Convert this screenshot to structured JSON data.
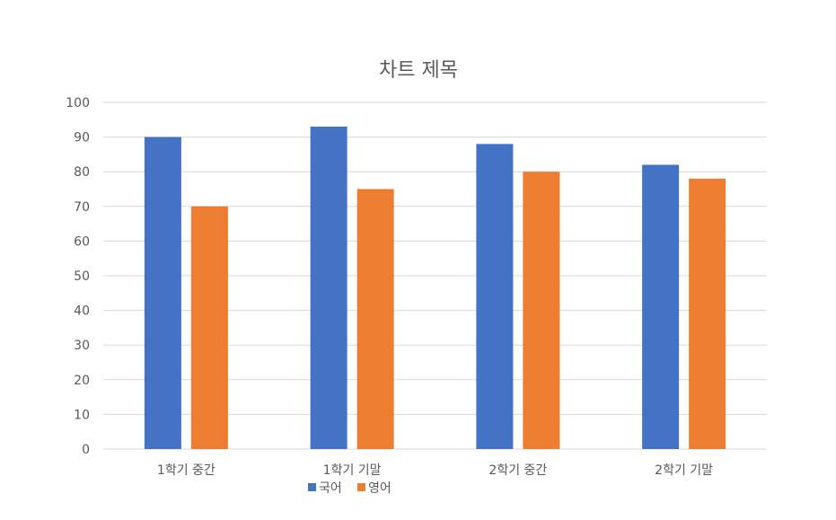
{
  "chart_data": {
    "type": "bar",
    "title": "차트 제목",
    "categories": [
      "1학기 중간",
      "1학기 기말",
      "2학기 중간",
      "2학기 기말"
    ],
    "series": [
      {
        "name": "국어",
        "values": [
          90,
          93,
          88,
          82
        ],
        "color": "#4472C4"
      },
      {
        "name": "영어",
        "values": [
          70,
          75,
          80,
          78
        ],
        "color": "#ED7D31"
      }
    ],
    "ylim": [
      0,
      100
    ],
    "yticks": [
      0,
      10,
      20,
      30,
      40,
      50,
      60,
      70,
      80,
      90,
      100
    ],
    "grid": true,
    "legend_position": "bottom"
  }
}
